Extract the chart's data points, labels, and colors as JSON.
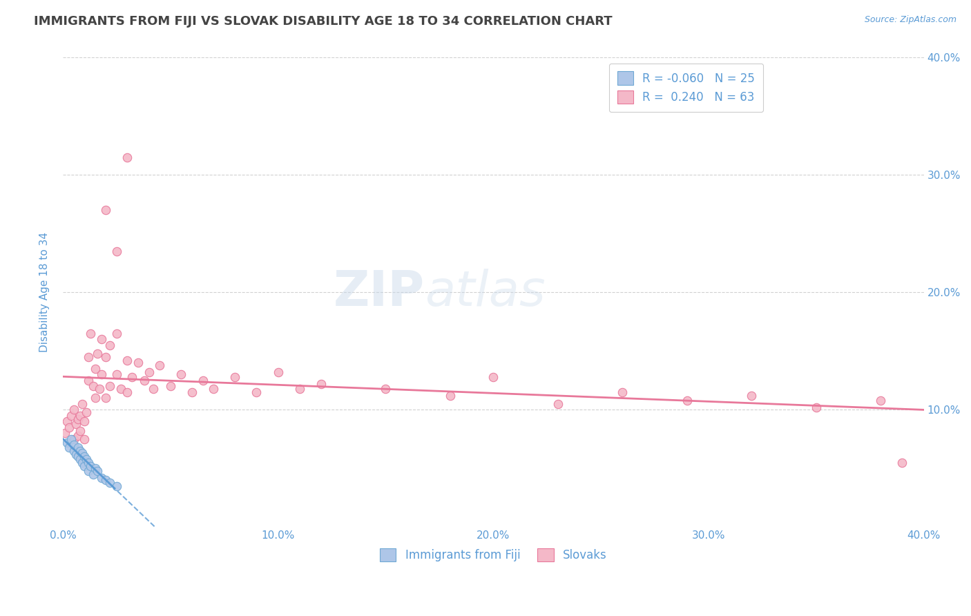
{
  "title": "IMMIGRANTS FROM FIJI VS SLOVAK DISABILITY AGE 18 TO 34 CORRELATION CHART",
  "source_text": "Source: ZipAtlas.com",
  "ylabel": "Disability Age 18 to 34",
  "xlim": [
    0.0,
    0.4
  ],
  "ylim": [
    0.0,
    0.4
  ],
  "xtick_vals": [
    0.0,
    0.1,
    0.2,
    0.3,
    0.4
  ],
  "ytick_vals": [
    0.1,
    0.2,
    0.3,
    0.4
  ],
  "fiji_color": "#aec6e8",
  "fiji_edge": "#6fa8d4",
  "fiji_line_color": "#5b9bd5",
  "fiji_R": -0.06,
  "fiji_N": 25,
  "slovak_color": "#f4b8c8",
  "slovak_edge": "#e8789a",
  "slovak_line_color": "#e8789a",
  "slovak_R": 0.24,
  "slovak_N": 63,
  "background_color": "#ffffff",
  "grid_color": "#cccccc",
  "title_color": "#444444",
  "label_color": "#5b9bd5",
  "fiji_x": [
    0.002,
    0.003,
    0.004,
    0.005,
    0.005,
    0.006,
    0.007,
    0.007,
    0.008,
    0.008,
    0.009,
    0.009,
    0.01,
    0.01,
    0.011,
    0.012,
    0.012,
    0.013,
    0.014,
    0.015,
    0.016,
    0.018,
    0.02,
    0.022,
    0.025
  ],
  "fiji_y": [
    0.072,
    0.068,
    0.075,
    0.065,
    0.07,
    0.062,
    0.068,
    0.06,
    0.065,
    0.058,
    0.063,
    0.055,
    0.06,
    0.052,
    0.058,
    0.055,
    0.048,
    0.052,
    0.045,
    0.05,
    0.048,
    0.042,
    0.04,
    0.038,
    0.035
  ],
  "slovak_x": [
    0.001,
    0.002,
    0.003,
    0.004,
    0.005,
    0.005,
    0.006,
    0.007,
    0.007,
    0.008,
    0.008,
    0.009,
    0.01,
    0.01,
    0.011,
    0.012,
    0.012,
    0.013,
    0.014,
    0.015,
    0.015,
    0.016,
    0.017,
    0.018,
    0.018,
    0.02,
    0.02,
    0.022,
    0.022,
    0.025,
    0.025,
    0.027,
    0.03,
    0.03,
    0.032,
    0.035,
    0.038,
    0.04,
    0.042,
    0.045,
    0.05,
    0.055,
    0.06,
    0.065,
    0.07,
    0.08,
    0.09,
    0.1,
    0.11,
    0.12,
    0.15,
    0.18,
    0.2,
    0.23,
    0.26,
    0.29,
    0.32,
    0.35,
    0.38,
    0.02,
    0.025,
    0.03,
    0.39
  ],
  "slovak_y": [
    0.08,
    0.09,
    0.085,
    0.095,
    0.075,
    0.1,
    0.088,
    0.092,
    0.078,
    0.095,
    0.082,
    0.105,
    0.09,
    0.075,
    0.098,
    0.145,
    0.125,
    0.165,
    0.12,
    0.135,
    0.11,
    0.148,
    0.118,
    0.16,
    0.13,
    0.145,
    0.11,
    0.155,
    0.12,
    0.165,
    0.13,
    0.118,
    0.142,
    0.115,
    0.128,
    0.14,
    0.125,
    0.132,
    0.118,
    0.138,
    0.12,
    0.13,
    0.115,
    0.125,
    0.118,
    0.128,
    0.115,
    0.132,
    0.118,
    0.122,
    0.118,
    0.112,
    0.128,
    0.105,
    0.115,
    0.108,
    0.112,
    0.102,
    0.108,
    0.27,
    0.235,
    0.315,
    0.055
  ]
}
